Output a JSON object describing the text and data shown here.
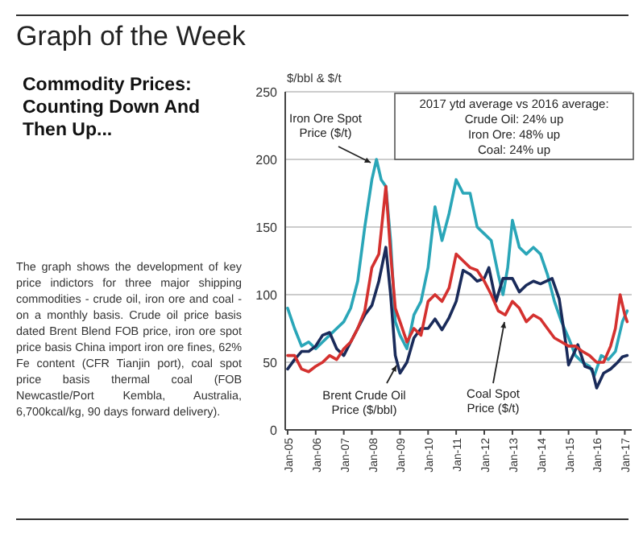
{
  "chart_data": {
    "type": "line",
    "title": "Graph of the Week",
    "subtitle": "Commodity Prices: Counting Down And Then Up...",
    "ylabel": "$/bbl & $/t",
    "annotations": [
      "The graph shows the development of key price indictors for three major shipping commodities - crude oil, iron ore and coal - on a monthly basis. Crude oil price basis dated Brent Blend FOB price, iron ore spot price basis China import iron ore fines, 62% Fe content (CFR Tianjin port), coal spot price basis thermal coal (FOB Newcastle/Port Kembla, Australia, 6,700kcal/kg, 90 days forward delivery).",
      "2017 ytd average vs 2016 average:",
      "Crude Oil: 24% up",
      "Iron Ore: 48% up",
      "Coal: 24% up"
    ],
    "xlim": [
      "2004-12",
      "2017-04"
    ],
    "xticks": [
      {
        "value": "2005-01",
        "label": "Jan-05"
      },
      {
        "value": "2006-01",
        "label": "Jan-06"
      },
      {
        "value": "2007-01",
        "label": "Jan-07"
      },
      {
        "value": "2008-01",
        "label": "Jan-08"
      },
      {
        "value": "2009-01",
        "label": "Jan-09"
      },
      {
        "value": "2010-01",
        "label": "Jan-10"
      },
      {
        "value": "2011-01",
        "label": "Jan-11"
      },
      {
        "value": "2012-01",
        "label": "Jan-12"
      },
      {
        "value": "2013-01",
        "label": "Jan-13"
      },
      {
        "value": "2014-01",
        "label": "Jan-14"
      },
      {
        "value": "2015-01",
        "label": "Jan-15"
      },
      {
        "value": "2016-01",
        "label": "Jan-16"
      },
      {
        "value": "2017-01",
        "label": "Jan-17"
      }
    ],
    "ylim": [
      0,
      250
    ],
    "yticks": [
      0,
      50,
      100,
      150,
      200,
      250
    ],
    "grid": "y",
    "marker": "none",
    "line_style": "solid",
    "series": [
      {
        "name": "Iron Ore Spot Price ($/t)",
        "color": "#2aa6b8",
        "x": [
          "2005-01",
          "2005-04",
          "2005-07",
          "2005-10",
          "2006-01",
          "2006-04",
          "2006-07",
          "2006-10",
          "2007-01",
          "2007-04",
          "2007-07",
          "2007-10",
          "2008-01",
          "2008-03",
          "2008-05",
          "2008-07",
          "2008-09",
          "2008-11",
          "2009-01",
          "2009-04",
          "2009-07",
          "2009-10",
          "2010-01",
          "2010-04",
          "2010-07",
          "2010-10",
          "2011-01",
          "2011-04",
          "2011-07",
          "2011-10",
          "2012-01",
          "2012-04",
          "2012-07",
          "2012-09",
          "2012-11",
          "2013-01",
          "2013-04",
          "2013-07",
          "2013-10",
          "2014-01",
          "2014-04",
          "2014-07",
          "2014-10",
          "2015-01",
          "2015-04",
          "2015-07",
          "2015-10",
          "2015-12",
          "2016-03",
          "2016-06",
          "2016-09",
          "2016-12",
          "2017-02"
        ],
        "values": [
          90,
          75,
          62,
          65,
          60,
          65,
          70,
          75,
          80,
          90,
          110,
          150,
          185,
          200,
          185,
          180,
          140,
          80,
          70,
          60,
          85,
          95,
          120,
          165,
          140,
          160,
          185,
          175,
          175,
          150,
          145,
          140,
          115,
          100,
          120,
          155,
          135,
          130,
          135,
          130,
          115,
          95,
          80,
          68,
          55,
          50,
          47,
          40,
          55,
          52,
          58,
          80,
          88
        ]
      },
      {
        "name": "Brent Crude Oil Price ($/bbl)",
        "color": "#1a2b5a",
        "x": [
          "2005-01",
          "2005-04",
          "2005-07",
          "2005-10",
          "2006-01",
          "2006-04",
          "2006-07",
          "2006-10",
          "2007-01",
          "2007-04",
          "2007-07",
          "2007-10",
          "2008-01",
          "2008-04",
          "2008-07",
          "2008-09",
          "2008-11",
          "2009-01",
          "2009-04",
          "2009-07",
          "2009-10",
          "2010-01",
          "2010-04",
          "2010-07",
          "2010-10",
          "2011-01",
          "2011-04",
          "2011-07",
          "2011-10",
          "2012-01",
          "2012-03",
          "2012-06",
          "2012-09",
          "2013-01",
          "2013-04",
          "2013-07",
          "2013-10",
          "2014-01",
          "2014-06",
          "2014-09",
          "2014-12",
          "2015-01",
          "2015-05",
          "2015-08",
          "2015-11",
          "2016-01",
          "2016-04",
          "2016-07",
          "2016-10",
          "2016-12",
          "2017-02"
        ],
        "values": [
          45,
          52,
          58,
          58,
          62,
          70,
          72,
          60,
          55,
          65,
          75,
          85,
          92,
          110,
          135,
          100,
          55,
          42,
          50,
          68,
          75,
          75,
          82,
          74,
          83,
          95,
          118,
          115,
          110,
          112,
          120,
          95,
          112,
          112,
          102,
          107,
          110,
          108,
          112,
          97,
          62,
          48,
          63,
          47,
          45,
          31,
          42,
          45,
          50,
          54,
          55
        ]
      },
      {
        "name": "Coal Spot Price ($/t)",
        "color": "#d4312f",
        "x": [
          "2005-01",
          "2005-04",
          "2005-07",
          "2005-10",
          "2006-01",
          "2006-04",
          "2006-07",
          "2006-10",
          "2007-01",
          "2007-04",
          "2007-07",
          "2007-10",
          "2008-01",
          "2008-04",
          "2008-07",
          "2008-09",
          "2008-11",
          "2009-01",
          "2009-04",
          "2009-07",
          "2009-10",
          "2010-01",
          "2010-04",
          "2010-07",
          "2010-10",
          "2011-01",
          "2011-04",
          "2011-07",
          "2011-10",
          "2012-01",
          "2012-04",
          "2012-07",
          "2012-10",
          "2013-01",
          "2013-04",
          "2013-07",
          "2013-10",
          "2014-01",
          "2014-04",
          "2014-07",
          "2014-10",
          "2015-01",
          "2015-04",
          "2015-07",
          "2015-10",
          "2016-01",
          "2016-04",
          "2016-07",
          "2016-09",
          "2016-11",
          "2017-01",
          "2017-02"
        ],
        "values": [
          55,
          55,
          45,
          43,
          47,
          50,
          55,
          52,
          60,
          65,
          75,
          88,
          120,
          130,
          180,
          130,
          90,
          80,
          65,
          75,
          70,
          95,
          100,
          95,
          105,
          130,
          125,
          120,
          118,
          110,
          100,
          88,
          85,
          95,
          90,
          80,
          85,
          82,
          75,
          68,
          65,
          62,
          62,
          58,
          55,
          50,
          50,
          62,
          75,
          100,
          85,
          80
        ]
      }
    ]
  }
}
